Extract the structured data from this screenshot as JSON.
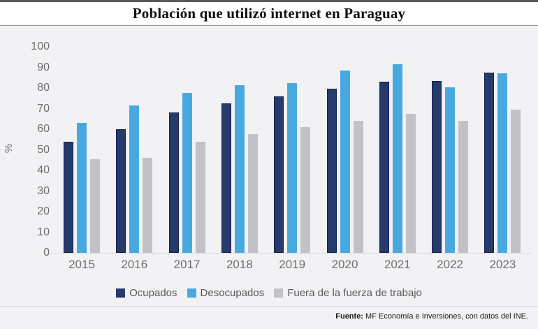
{
  "header": {
    "title": "Población que utilizó internet en Paraguay"
  },
  "chart_data": {
    "type": "bar",
    "title": "Población que utilizó internet en Paraguay",
    "categories": [
      "2015",
      "2016",
      "2017",
      "2018",
      "2019",
      "2020",
      "2021",
      "2022",
      "2023"
    ],
    "series": [
      {
        "name": "Ocupados",
        "color": "#263a6b",
        "edge_color": "#14204a",
        "values": [
          54,
          60,
          68,
          72.5,
          76,
          79.5,
          83,
          83.5,
          87.5
        ]
      },
      {
        "name": "Desocupados",
        "color": "#48a9e1",
        "edge_color": "#48a9e1",
        "values": [
          63,
          71.5,
          77.5,
          81.5,
          82.5,
          88.5,
          91.5,
          80.5,
          87
        ]
      },
      {
        "name": "Fuera de la fuerza de trabajo",
        "color": "#c2c2c6",
        "edge_color": "#c2c2c6",
        "values": [
          45.5,
          46,
          54,
          57.5,
          61,
          64,
          67.5,
          64,
          69.5
        ]
      }
    ],
    "xlabel": "",
    "ylabel": "%",
    "ylim": [
      0,
      100
    ],
    "ytick_step": 10,
    "grid": false,
    "legend_position": "bottom",
    "background_color": "#f2f2f4"
  },
  "footer": {
    "source_label": "Fuente:",
    "source_text": " MF Economía e Inversiones, con datos del INE."
  }
}
